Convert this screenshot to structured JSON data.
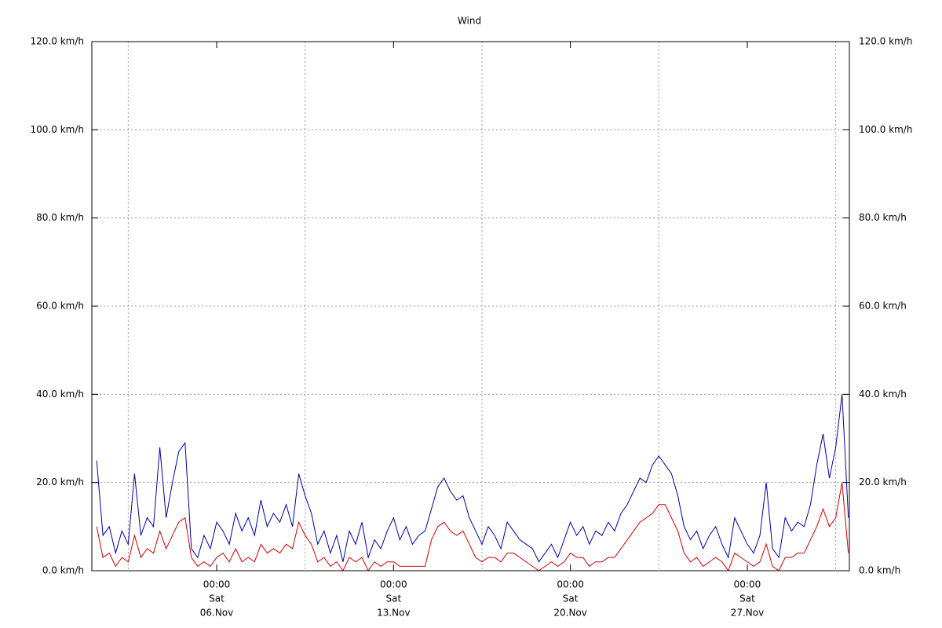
{
  "chart_data": {
    "type": "line",
    "title": "Wind",
    "x": [
      -4.75,
      -4.5,
      -4.25,
      -4,
      -3.75,
      -3.5,
      -3.25,
      -3,
      -2.75,
      -2.5,
      -2.25,
      -2,
      -1.75,
      -1.5,
      -1.25,
      -1,
      -0.75,
      -0.5,
      -0.25,
      0,
      0.25,
      0.5,
      0.75,
      1,
      1.25,
      1.5,
      1.75,
      2,
      2.25,
      2.5,
      2.75,
      3,
      3.25,
      3.5,
      3.75,
      4,
      4.25,
      4.5,
      4.75,
      5,
      5.25,
      5.5,
      5.75,
      6,
      6.25,
      6.5,
      6.75,
      7,
      7.25,
      7.5,
      7.75,
      8,
      8.25,
      8.5,
      8.75,
      9,
      9.25,
      9.5,
      9.75,
      10,
      10.25,
      10.5,
      10.75,
      11,
      11.25,
      11.5,
      11.75,
      12,
      12.25,
      12.5,
      12.75,
      13,
      13.25,
      13.5,
      13.75,
      14,
      14.25,
      14.5,
      14.75,
      15,
      15.25,
      15.5,
      15.75,
      16,
      16.25,
      16.5,
      16.75,
      17,
      17.25,
      17.5,
      17.75,
      18,
      18.25,
      18.5,
      18.75,
      19,
      19.25,
      19.5,
      19.75,
      20,
      20.25,
      20.5,
      20.75,
      21,
      21.25,
      21.5,
      21.75,
      22,
      22.25,
      22.5,
      22.75,
      23,
      23.25,
      23.5,
      23.75,
      24,
      24.25,
      24.5,
      24.75,
      25
    ],
    "series": [
      {
        "color": "#0000a0",
        "values": [
          25,
          8,
          10,
          4,
          9,
          6,
          22,
          8,
          12,
          10,
          28,
          12,
          20,
          27,
          29,
          5,
          3,
          8,
          5,
          11,
          9,
          6,
          13,
          9,
          12,
          8,
          16,
          10,
          13,
          11,
          15,
          10,
          22,
          17,
          13,
          6,
          9,
          4,
          8,
          2,
          9,
          6,
          11,
          3,
          7,
          5,
          9,
          12,
          7,
          10,
          6,
          8,
          9,
          14,
          19,
          21,
          18,
          16,
          17,
          12,
          9,
          6,
          10,
          8,
          5,
          11,
          9,
          7,
          6,
          5,
          2,
          4,
          6,
          3,
          7,
          11,
          8,
          10,
          6,
          9,
          8,
          11,
          9,
          13,
          15,
          18,
          21,
          20,
          24,
          26,
          24,
          22,
          17,
          10,
          7,
          9,
          5,
          8,
          10,
          6,
          3,
          12,
          9,
          6,
          4,
          8,
          20,
          5,
          3,
          12,
          9,
          11,
          10,
          15,
          24,
          31,
          21,
          28,
          40,
          12
        ]
      },
      {
        "color": "#cc0000",
        "values": [
          10,
          3,
          4,
          1,
          3,
          2,
          8,
          3,
          5,
          4,
          9,
          5,
          8,
          11,
          12,
          3,
          1,
          2,
          1,
          3,
          4,
          2,
          5,
          2,
          3,
          2,
          6,
          4,
          5,
          4,
          6,
          5,
          11,
          8,
          6,
          2,
          3,
          1,
          2,
          0,
          3,
          2,
          3,
          0,
          2,
          1,
          2,
          2,
          1,
          1,
          1,
          1,
          1,
          7,
          10,
          11,
          9,
          8,
          9,
          6,
          3,
          2,
          3,
          3,
          2,
          4,
          4,
          3,
          2,
          1,
          0,
          1,
          2,
          1,
          2,
          4,
          3,
          3,
          1,
          2,
          2,
          3,
          3,
          5,
          7,
          9,
          11,
          12,
          13,
          15,
          15,
          12,
          9,
          4,
          2,
          3,
          1,
          2,
          3,
          2,
          0,
          4,
          3,
          2,
          1,
          2,
          6,
          1,
          0,
          3,
          3,
          4,
          4,
          7,
          10,
          14,
          10,
          12,
          20,
          4
        ]
      }
    ],
    "xlim": [
      -4.94,
      25.04
    ],
    "xticks": [
      {
        "value": 0,
        "label": [
          "00:00",
          "Sat",
          "06.Nov"
        ]
      },
      {
        "value": 7,
        "label": [
          "00:00",
          "Sat",
          "13.Nov"
        ]
      },
      {
        "value": 14,
        "label": [
          "00:00",
          "Sat",
          "20.Nov"
        ]
      },
      {
        "value": 21,
        "label": [
          "00:00",
          "Sat",
          "27.Nov"
        ]
      }
    ],
    "xgrid": [
      -3.5,
      3.5,
      10.5,
      17.5,
      24.5
    ],
    "ylim": [
      0,
      120
    ],
    "yticks": [
      {
        "value": 0,
        "label": "0.0 km/h"
      },
      {
        "value": 20,
        "label": "20.0 km/h"
      },
      {
        "value": 40,
        "label": "40.0 km/h"
      },
      {
        "value": 60,
        "label": "60.0 km/h"
      },
      {
        "value": 80,
        "label": "80.0 km/h"
      },
      {
        "value": 100,
        "label": "100.0 km/h"
      },
      {
        "value": 120,
        "label": "120.0 km/h"
      }
    ],
    "grid": true
  }
}
